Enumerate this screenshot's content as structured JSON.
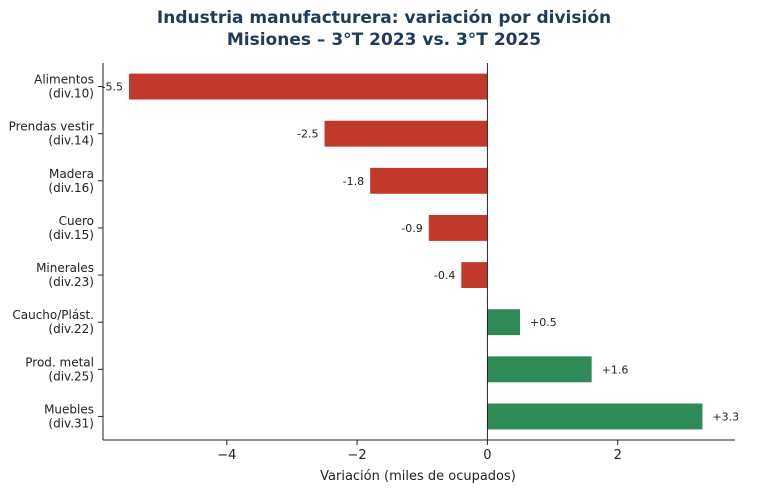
{
  "chart_data": {
    "type": "bar",
    "orientation": "horizontal",
    "title": "Industria manufacturera: variación por división",
    "subtitle": "Misiones – 3°T 2023 vs. 3°T 2025",
    "xlabel": "Variación (miles de ocupados)",
    "ylabel": "",
    "xlim": [
      -5.9,
      3.8
    ],
    "xticks": [
      -4,
      -2,
      0,
      2
    ],
    "xtick_labels": [
      "−4",
      "−2",
      "0",
      "2"
    ],
    "grid": false,
    "categories": [
      {
        "name": "Alimentos",
        "code": "(div.10)"
      },
      {
        "name": "Prendas vestir",
        "code": "(div.14)"
      },
      {
        "name": "Madera",
        "code": "(div.16)"
      },
      {
        "name": "Cuero",
        "code": "(div.15)"
      },
      {
        "name": "Minerales",
        "code": "(div.23)"
      },
      {
        "name": "Caucho/Plást.",
        "code": "(div.22)"
      },
      {
        "name": "Prod. metal",
        "code": "(div.25)"
      },
      {
        "name": "Muebles",
        "code": "(div.31)"
      }
    ],
    "values": [
      -5.5,
      -2.5,
      -1.8,
      -0.9,
      -0.4,
      0.5,
      1.6,
      3.3
    ],
    "data_labels": [
      "-5.5",
      "-2.5",
      "-1.8",
      "-0.9",
      "-0.4",
      "+0.5",
      "+1.6",
      "+3.3"
    ],
    "colors": {
      "negative": "#c0392b",
      "positive": "#2e8b57",
      "text": "#1f3b5a"
    }
  }
}
